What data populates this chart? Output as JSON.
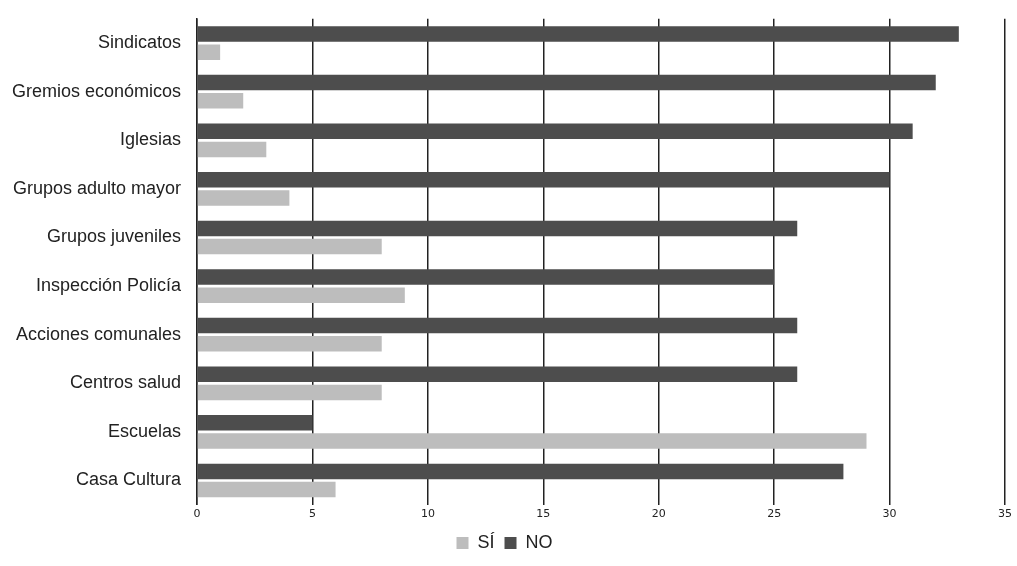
{
  "chart_data": {
    "type": "bar",
    "orientation": "horizontal",
    "categories": [
      "Sindicatos",
      "Gremios económicos",
      "Iglesias",
      "Grupos adulto mayor",
      "Grupos juveniles",
      "Inspección Policía",
      "Acciones comunales",
      "Centros salud",
      "Escuelas",
      "Casa Cultura"
    ],
    "series": [
      {
        "name": "SÍ",
        "color": "#bdbdbd",
        "values": [
          1,
          2,
          3,
          4,
          8,
          9,
          8,
          8,
          29,
          6
        ]
      },
      {
        "name": "NO",
        "color": "#4d4d4d",
        "values": [
          33,
          32,
          31,
          30,
          26,
          25,
          26,
          26,
          5,
          28
        ]
      }
    ],
    "xlim": [
      0,
      35
    ],
    "xticks": [
      0,
      5,
      10,
      15,
      20,
      25,
      30,
      35
    ],
    "grid": "x",
    "legend": "bottom"
  }
}
